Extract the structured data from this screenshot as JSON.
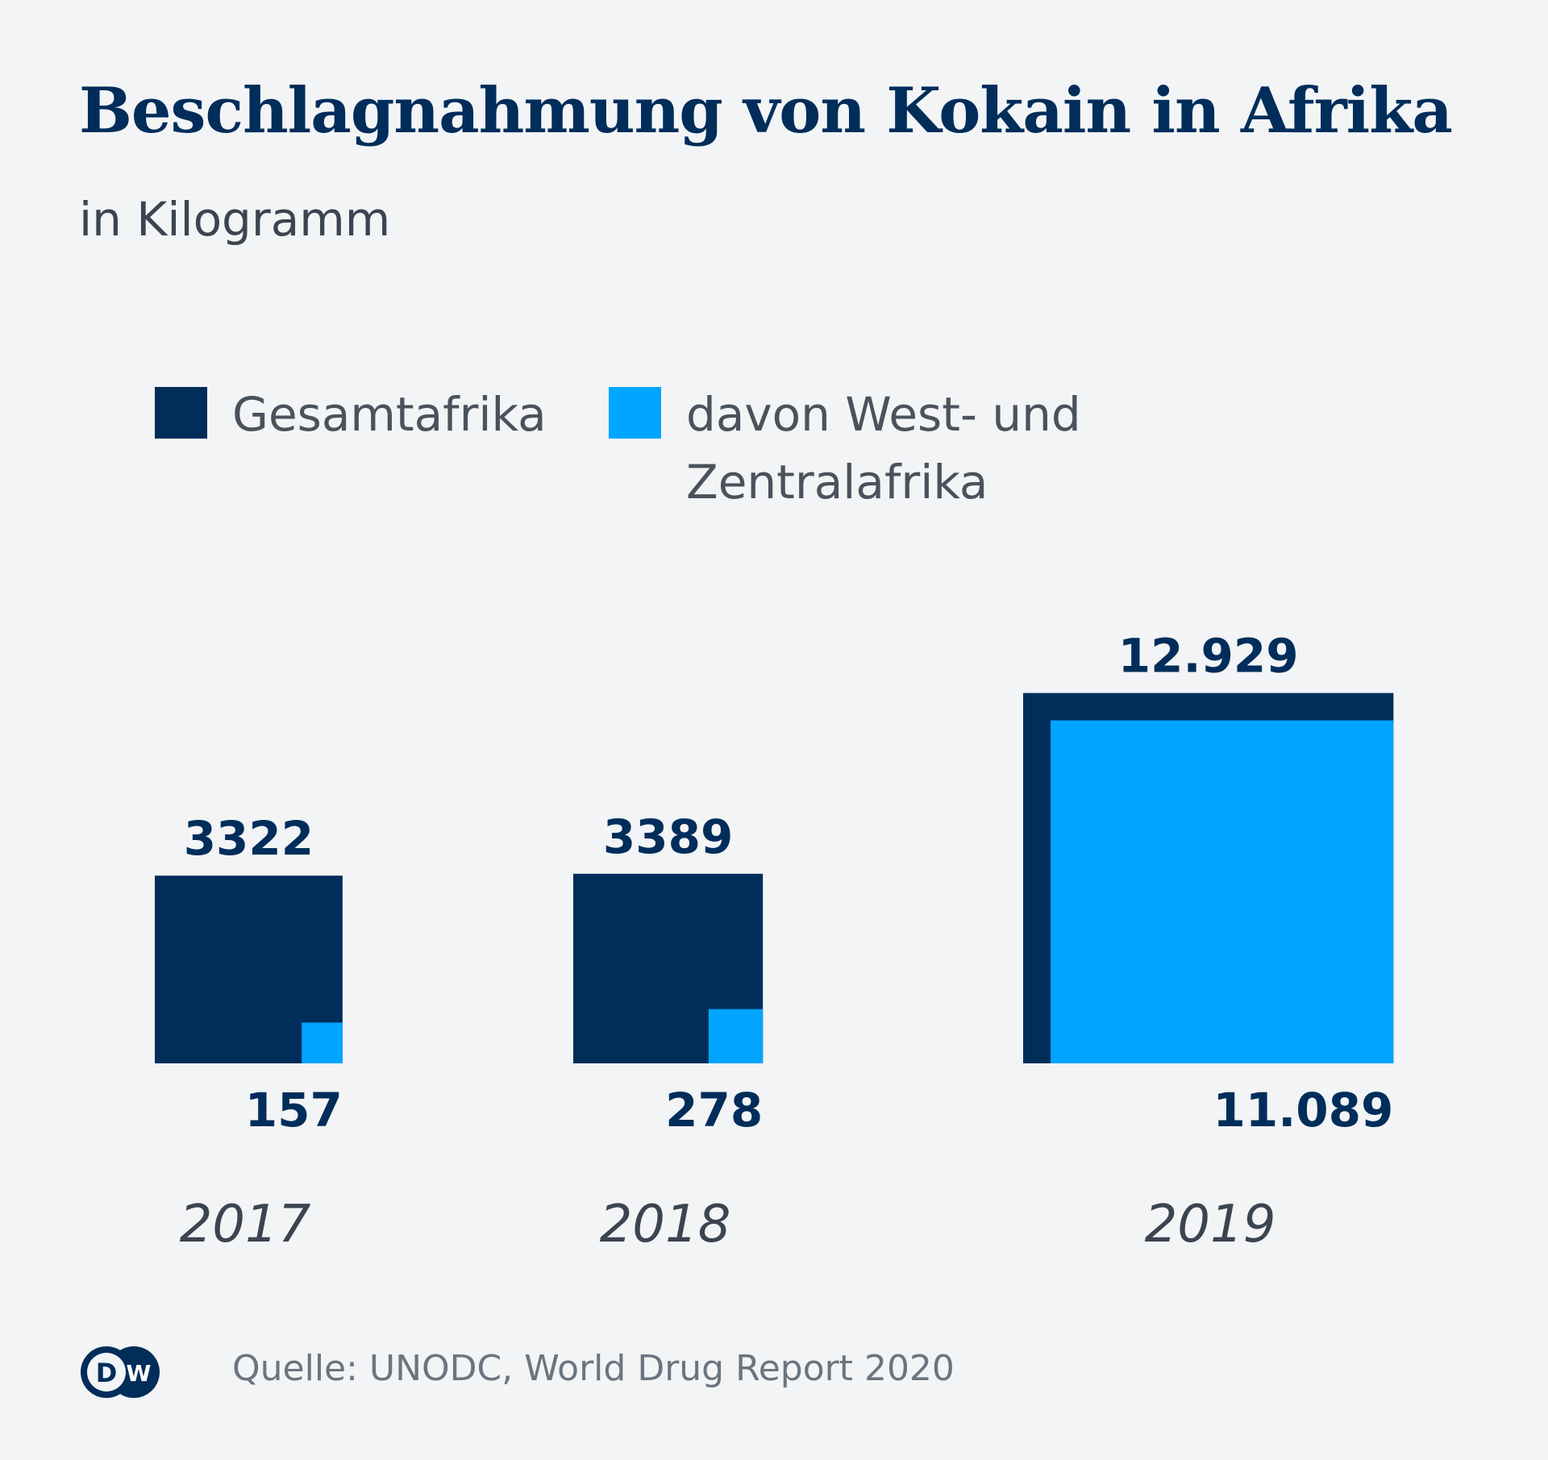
{
  "chart_data": {
    "type": "area-square",
    "title": "Beschlagnahmung von Kokain in Afrika",
    "subtitle": "in Kilogramm",
    "categories": [
      "2017",
      "2018",
      "2019"
    ],
    "series": [
      {
        "name": "Gesamtafrika",
        "values": [
          3322,
          3389,
          12929
        ],
        "labels": [
          "3322",
          "3389",
          "12.929"
        ],
        "color": "#002d5a"
      },
      {
        "name": "davon West- und Zentralafrika",
        "values": [
          157,
          278,
          11089
        ],
        "labels": [
          "157",
          "278",
          "11.089"
        ],
        "color": "#00a5ff"
      }
    ],
    "legend": {
      "placement": "top-left",
      "items": [
        "Gesamtafrika",
        "davon West- und",
        "Zentralafrika"
      ]
    }
  },
  "footer": {
    "source": "Quelle: UNODC, World Drug Report 2020",
    "logo": "DW"
  }
}
